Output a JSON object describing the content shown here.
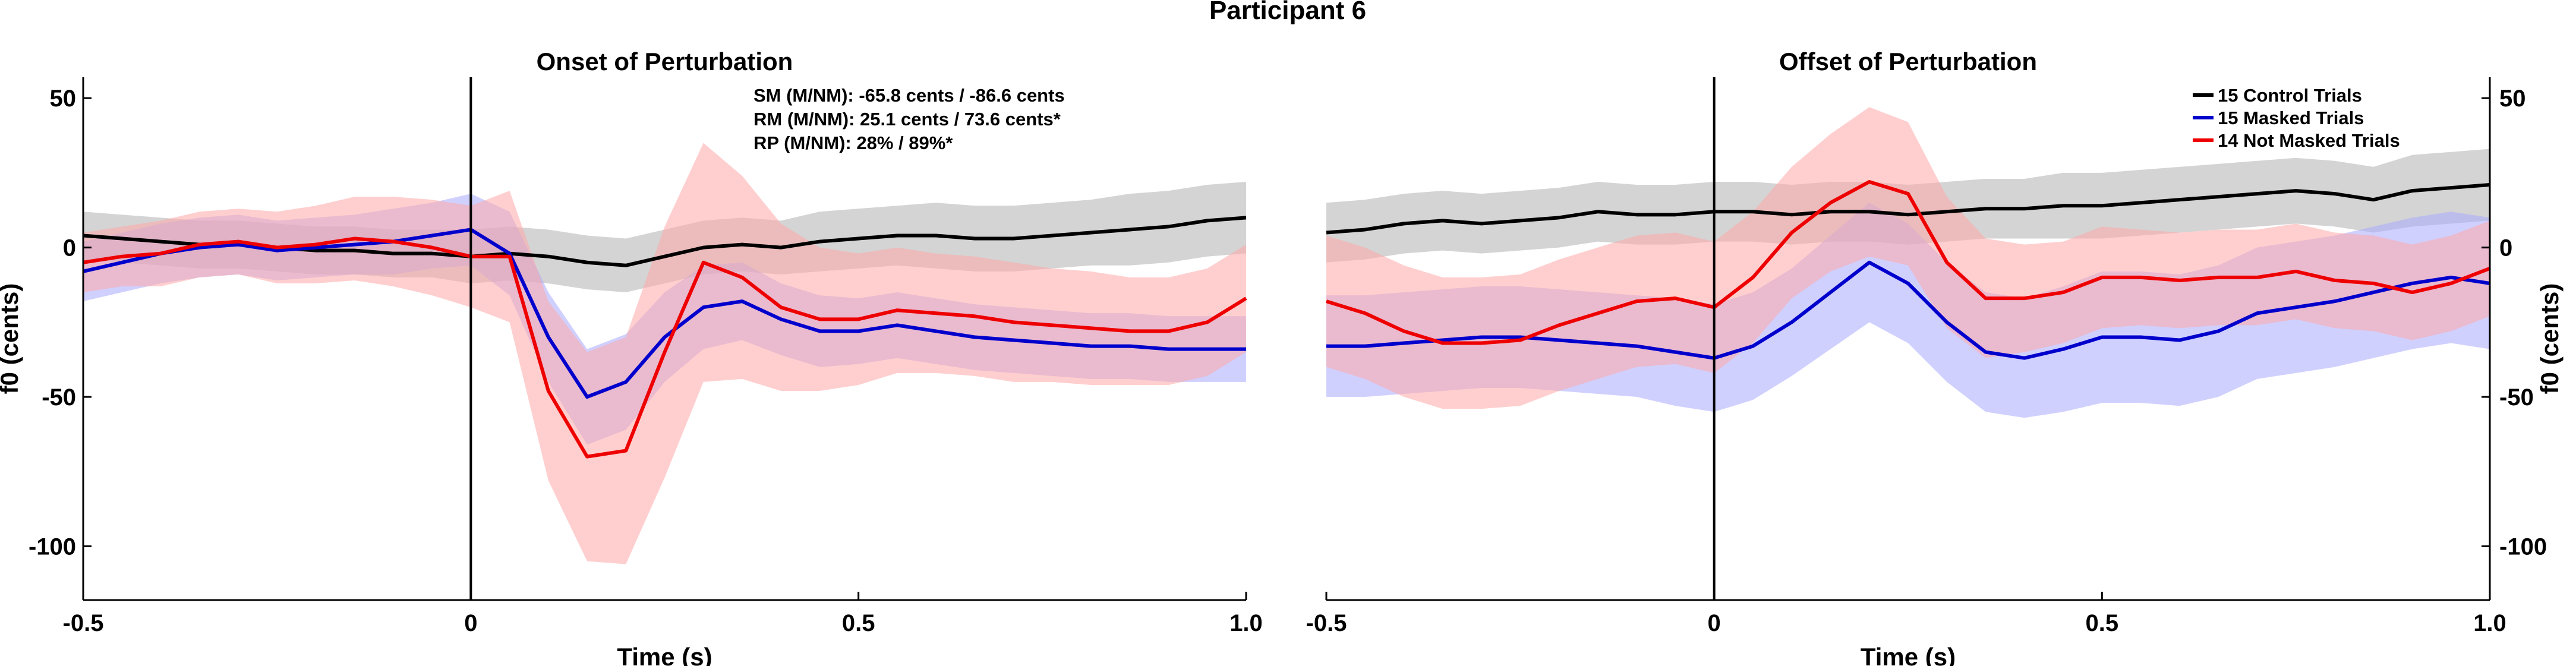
{
  "figure_title": "Participant 6",
  "colors": {
    "control": "#000000",
    "masked": "#0000cc",
    "not_masked": "#ee0000",
    "control_band": "#b0b0b0",
    "masked_band": "#aaaaff",
    "not_masked_band": "#ffa8a8"
  },
  "chart_data": [
    {
      "type": "line",
      "title": "Onset of Perturbation",
      "xlabel": "Time (s)",
      "ylabel": "f0 (cents)",
      "xlim": [
        -0.5,
        1.0
      ],
      "ylim": [
        -118,
        57
      ],
      "xticks": [
        -0.5,
        0,
        0.5,
        1.0
      ],
      "xtick_labels": [
        "-0.5",
        "0",
        "0.5",
        "1.0"
      ],
      "yticks": [
        50,
        0,
        -50,
        -100
      ],
      "ytick_labels": [
        "50",
        "0",
        "-50",
        "-100"
      ],
      "ytick_side": "left",
      "event_line_x": 0,
      "annotations": [
        "SM (M/NM): -65.8 cents / -86.6 cents",
        "RM (M/NM): 25.1 cents / 73.6 cents*",
        "RP (M/NM): 28% / 89%*"
      ],
      "series": [
        {
          "key": "control",
          "x": [
            -0.5,
            -0.45,
            -0.4,
            -0.35,
            -0.3,
            -0.25,
            -0.2,
            -0.15,
            -0.1,
            -0.05,
            0,
            0.05,
            0.1,
            0.15,
            0.2,
            0.25,
            0.3,
            0.35,
            0.4,
            0.45,
            0.5,
            0.55,
            0.6,
            0.65,
            0.7,
            0.75,
            0.8,
            0.85,
            0.9,
            0.95,
            1.0
          ],
          "values": [
            4,
            3,
            2,
            1,
            1,
            0,
            -1,
            -1,
            -2,
            -2,
            -3,
            -2,
            -3,
            -5,
            -6,
            -3,
            0,
            1,
            0,
            2,
            3,
            4,
            4,
            3,
            3,
            4,
            5,
            6,
            7,
            9,
            10
          ],
          "band": [
            8,
            8,
            8,
            8,
            8,
            8,
            8,
            8,
            8,
            8,
            9,
            9,
            9,
            9,
            9,
            9,
            9,
            9,
            9,
            10,
            10,
            10,
            11,
            11,
            11,
            11,
            11,
            12,
            12,
            12,
            12
          ]
        },
        {
          "key": "masked",
          "x": [
            -0.5,
            -0.45,
            -0.4,
            -0.35,
            -0.3,
            -0.25,
            -0.2,
            -0.15,
            -0.1,
            -0.05,
            0,
            0.05,
            0.1,
            0.15,
            0.2,
            0.25,
            0.3,
            0.35,
            0.4,
            0.45,
            0.5,
            0.55,
            0.6,
            0.65,
            0.7,
            0.75,
            0.8,
            0.85,
            0.9,
            0.95,
            1.0
          ],
          "values": [
            -8,
            -5,
            -2,
            0,
            1,
            -1,
            0,
            1,
            2,
            4,
            6,
            -2,
            -30,
            -50,
            -45,
            -30,
            -20,
            -18,
            -24,
            -28,
            -28,
            -26,
            -28,
            -30,
            -31,
            -32,
            -33,
            -33,
            -34,
            -34,
            -34
          ],
          "band": [
            10,
            10,
            10,
            10,
            10,
            10,
            10,
            10,
            11,
            11,
            12,
            14,
            15,
            16,
            16,
            15,
            14,
            13,
            12,
            12,
            11,
            11,
            11,
            11,
            11,
            11,
            11,
            11,
            11,
            11,
            11
          ]
        },
        {
          "key": "not_masked",
          "x": [
            -0.5,
            -0.45,
            -0.4,
            -0.35,
            -0.3,
            -0.25,
            -0.2,
            -0.15,
            -0.1,
            -0.05,
            0,
            0.05,
            0.1,
            0.15,
            0.2,
            0.25,
            0.3,
            0.35,
            0.4,
            0.45,
            0.5,
            0.55,
            0.6,
            0.65,
            0.7,
            0.75,
            0.8,
            0.85,
            0.9,
            0.95,
            1.0
          ],
          "values": [
            -5,
            -3,
            -2,
            1,
            2,
            0,
            1,
            3,
            2,
            0,
            -3,
            -3,
            -48,
            -70,
            -68,
            -35,
            -5,
            -10,
            -20,
            -24,
            -24,
            -21,
            -22,
            -23,
            -25,
            -26,
            -27,
            -28,
            -28,
            -25,
            -17
          ],
          "band": [
            10,
            10,
            11,
            11,
            11,
            12,
            13,
            14,
            15,
            16,
            17,
            22,
            30,
            35,
            38,
            42,
            40,
            34,
            28,
            24,
            22,
            21,
            20,
            20,
            20,
            19,
            19,
            18,
            18,
            18,
            18
          ]
        }
      ]
    },
    {
      "type": "line",
      "title": "Offset of Perturbation",
      "xlabel": "Time (s)",
      "ylabel": "f0 (cents)",
      "xlim": [
        -0.5,
        1.0
      ],
      "ylim": [
        -118,
        57
      ],
      "xticks": [
        -0.5,
        0,
        0.5,
        1.0
      ],
      "xtick_labels": [
        "-0.5",
        "0",
        "0.5",
        "1.0"
      ],
      "yticks": [
        50,
        0,
        -50,
        -100
      ],
      "ytick_labels": [
        "50",
        "0",
        "-50",
        "-100"
      ],
      "ytick_side": "right",
      "event_line_x": 0,
      "legend": {
        "position": "top-right",
        "entries": [
          {
            "label": "15 Control Trials",
            "key": "control"
          },
          {
            "label": "15 Masked Trials",
            "key": "masked"
          },
          {
            "label": "14 Not Masked Trials",
            "key": "not_masked"
          }
        ]
      },
      "series": [
        {
          "key": "control",
          "x": [
            -0.5,
            -0.45,
            -0.4,
            -0.35,
            -0.3,
            -0.25,
            -0.2,
            -0.15,
            -0.1,
            -0.05,
            0,
            0.05,
            0.1,
            0.15,
            0.2,
            0.25,
            0.3,
            0.35,
            0.4,
            0.45,
            0.5,
            0.55,
            0.6,
            0.65,
            0.7,
            0.75,
            0.8,
            0.85,
            0.9,
            0.95,
            1.0
          ],
          "values": [
            5,
            6,
            8,
            9,
            8,
            9,
            10,
            12,
            11,
            11,
            12,
            12,
            11,
            12,
            12,
            11,
            12,
            13,
            13,
            14,
            14,
            15,
            16,
            17,
            18,
            19,
            18,
            16,
            19,
            20,
            21
          ],
          "band": [
            10,
            10,
            10,
            10,
            10,
            10,
            10,
            10,
            10,
            10,
            10,
            10,
            10,
            10,
            10,
            10,
            10,
            10,
            10,
            11,
            11,
            11,
            11,
            11,
            11,
            11,
            11,
            11,
            12,
            12,
            12
          ]
        },
        {
          "key": "masked",
          "x": [
            -0.5,
            -0.45,
            -0.4,
            -0.35,
            -0.3,
            -0.25,
            -0.2,
            -0.15,
            -0.1,
            -0.05,
            0,
            0.05,
            0.1,
            0.15,
            0.2,
            0.25,
            0.3,
            0.35,
            0.4,
            0.45,
            0.5,
            0.55,
            0.6,
            0.65,
            0.7,
            0.75,
            0.8,
            0.85,
            0.9,
            0.95,
            1.0
          ],
          "values": [
            -33,
            -33,
            -32,
            -31,
            -30,
            -30,
            -31,
            -32,
            -33,
            -35,
            -37,
            -33,
            -25,
            -15,
            -5,
            -12,
            -25,
            -35,
            -37,
            -34,
            -30,
            -30,
            -31,
            -28,
            -22,
            -20,
            -18,
            -15,
            -12,
            -10,
            -12
          ],
          "band": [
            17,
            17,
            17,
            17,
            17,
            17,
            17,
            17,
            17,
            18,
            18,
            18,
            18,
            19,
            20,
            20,
            20,
            20,
            20,
            21,
            22,
            22,
            22,
            22,
            22,
            22,
            22,
            22,
            22,
            22,
            22
          ]
        },
        {
          "key": "not_masked",
          "x": [
            -0.5,
            -0.45,
            -0.4,
            -0.35,
            -0.3,
            -0.25,
            -0.2,
            -0.15,
            -0.1,
            -0.05,
            0,
            0.05,
            0.1,
            0.15,
            0.2,
            0.25,
            0.3,
            0.35,
            0.4,
            0.45,
            0.5,
            0.55,
            0.6,
            0.65,
            0.7,
            0.75,
            0.8,
            0.85,
            0.9,
            0.95,
            1.0
          ],
          "values": [
            -18,
            -22,
            -28,
            -32,
            -32,
            -31,
            -26,
            -22,
            -18,
            -17,
            -20,
            -10,
            5,
            15,
            22,
            18,
            -5,
            -17,
            -17,
            -15,
            -10,
            -10,
            -11,
            -10,
            -10,
            -8,
            -11,
            -12,
            -15,
            -12,
            -7
          ],
          "band": [
            22,
            22,
            22,
            22,
            22,
            22,
            22,
            22,
            22,
            22,
            22,
            22,
            22,
            23,
            25,
            24,
            22,
            20,
            18,
            17,
            17,
            16,
            16,
            16,
            16,
            16,
            16,
            16,
            16,
            16,
            16
          ]
        }
      ]
    }
  ]
}
